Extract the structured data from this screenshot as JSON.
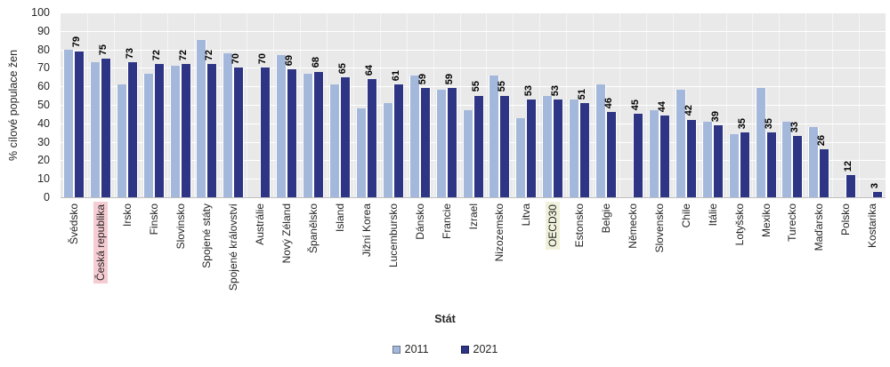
{
  "chart_data": {
    "type": "bar",
    "title": "",
    "xlabel": "Stát",
    "ylabel": "% cílové populace žen",
    "ylim": [
      0,
      100
    ],
    "yticks": [
      0,
      10,
      20,
      30,
      40,
      50,
      60,
      70,
      80,
      90,
      100
    ],
    "grid": true,
    "legend_position": "bottom",
    "plot_bg_color": "#E9E9E9",
    "grid_color": "#FFFFFF",
    "axis_line_color": "#BFBFBF",
    "text_color": "#262626",
    "data_label_color": "#000000",
    "categories": [
      "Švédsko",
      "Česká republika",
      "Irsko",
      "Finsko",
      "Slovinsko",
      "Spojené státy",
      "Spojené království",
      "Austrálie",
      "Nový Zéland",
      "Španělsko",
      "Island",
      "Jižní Korea",
      "Lucembursko",
      "Dánsko",
      "Francie",
      "Izrael",
      "Nizozemsko",
      "Litva",
      "OECD30",
      "Estonsko",
      "Belgie",
      "Německo",
      "Slovensko",
      "Chile",
      "Itálie",
      "Lotyšsko",
      "Mexiko",
      "Turecko",
      "Maďarsko",
      "Polsko",
      "Kostarika"
    ],
    "series": [
      {
        "name": "2011",
        "color": "#A3B8DB",
        "values": [
          80,
          73,
          61,
          67,
          71,
          85,
          78,
          null,
          77,
          67,
          61,
          48,
          51,
          66,
          58,
          47,
          66,
          43,
          55,
          53,
          61,
          null,
          47,
          58,
          41,
          34,
          59,
          41,
          38,
          null,
          null
        ]
      },
      {
        "name": "2021",
        "color": "#2D3584",
        "values": [
          79,
          75,
          73,
          72,
          72,
          72,
          70,
          70,
          69,
          68,
          65,
          64,
          61,
          59,
          59,
          55,
          55,
          53,
          53,
          51,
          46,
          45,
          44,
          42,
          39,
          35,
          35,
          33,
          26,
          12,
          3
        ]
      }
    ],
    "data_labels_from_series": "2021",
    "highlighted_categories": [
      {
        "category": "Česká republika",
        "color": "#F6CCD3"
      },
      {
        "category": "OECD30",
        "color": "#F1F1DB"
      }
    ]
  }
}
